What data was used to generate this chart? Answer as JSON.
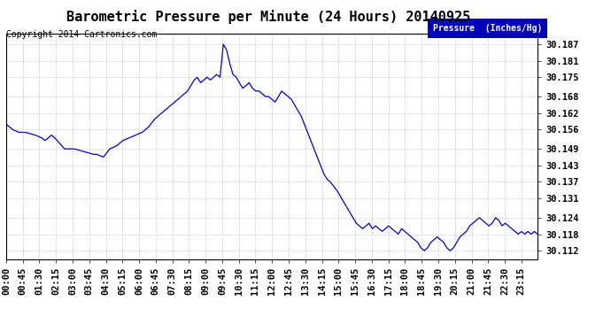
{
  "title": "Barometric Pressure per Minute (24 Hours) 20140925",
  "copyright": "Copyright 2014 Cartronics.com",
  "legend_label": "Pressure  (Inches/Hg)",
  "legend_bg": "#0000bb",
  "legend_text_color": "#ffffff",
  "line_color": "#0000cc",
  "background_color": "#ffffff",
  "grid_color": "#cccccc",
  "yticks": [
    30.112,
    30.118,
    30.124,
    30.131,
    30.137,
    30.143,
    30.149,
    30.156,
    30.162,
    30.168,
    30.175,
    30.181,
    30.187
  ],
  "ylim": [
    30.109,
    30.191
  ],
  "xtick_labels": [
    "00:00",
    "00:45",
    "01:30",
    "02:15",
    "03:00",
    "03:45",
    "04:30",
    "05:15",
    "06:00",
    "06:45",
    "07:30",
    "08:15",
    "09:00",
    "09:45",
    "10:30",
    "11:15",
    "12:00",
    "12:45",
    "13:30",
    "14:15",
    "15:00",
    "15:45",
    "16:30",
    "17:15",
    "18:00",
    "18:45",
    "19:30",
    "20:15",
    "21:00",
    "21:45",
    "22:30",
    "23:15"
  ],
  "title_fontsize": 11,
  "tick_fontsize": 7.5,
  "copyright_fontsize": 7,
  "keypoints": [
    [
      0,
      30.158
    ],
    [
      30,
      30.156
    ],
    [
      60,
      30.155
    ],
    [
      90,
      30.155
    ],
    [
      135,
      30.154
    ],
    [
      165,
      30.153
    ],
    [
      180,
      30.152
    ],
    [
      210,
      30.154
    ],
    [
      225,
      30.153
    ],
    [
      270,
      30.149
    ],
    [
      315,
      30.149
    ],
    [
      360,
      30.148
    ],
    [
      405,
      30.147
    ],
    [
      420,
      30.147
    ],
    [
      450,
      30.146
    ],
    [
      480,
      30.149
    ],
    [
      510,
      30.15
    ],
    [
      525,
      30.151
    ],
    [
      540,
      30.152
    ],
    [
      570,
      30.153
    ],
    [
      600,
      30.154
    ],
    [
      630,
      30.155
    ],
    [
      660,
      30.157
    ],
    [
      690,
      30.16
    ],
    [
      720,
      30.162
    ],
    [
      750,
      30.164
    ],
    [
      780,
      30.166
    ],
    [
      810,
      30.168
    ],
    [
      840,
      30.17
    ],
    [
      855,
      30.172
    ],
    [
      870,
      30.174
    ],
    [
      885,
      30.175
    ],
    [
      900,
      30.173
    ],
    [
      915,
      30.174
    ],
    [
      930,
      30.175
    ],
    [
      945,
      30.174
    ],
    [
      960,
      30.175
    ],
    [
      975,
      30.176
    ],
    [
      990,
      30.175
    ],
    [
      1005,
      30.187
    ],
    [
      1020,
      30.185
    ],
    [
      1035,
      30.18
    ],
    [
      1050,
      30.176
    ],
    [
      1065,
      30.175
    ],
    [
      1080,
      30.173
    ],
    [
      1095,
      30.171
    ],
    [
      1110,
      30.172
    ],
    [
      1125,
      30.173
    ],
    [
      1140,
      30.171
    ],
    [
      1155,
      30.17
    ],
    [
      1170,
      30.17
    ],
    [
      1185,
      30.169
    ],
    [
      1200,
      30.168
    ],
    [
      1215,
      30.168
    ],
    [
      1230,
      30.167
    ],
    [
      1245,
      30.166
    ],
    [
      1260,
      30.168
    ],
    [
      1275,
      30.17
    ],
    [
      1290,
      30.169
    ],
    [
      1305,
      30.168
    ],
    [
      1320,
      30.167
    ],
    [
      1335,
      30.165
    ],
    [
      1350,
      30.163
    ],
    [
      1365,
      30.161
    ],
    [
      1380,
      30.158
    ],
    [
      1395,
      30.155
    ],
    [
      1410,
      30.152
    ],
    [
      1425,
      30.149
    ],
    [
      1440,
      30.146
    ],
    [
      1455,
      30.143
    ],
    [
      1470,
      30.14
    ],
    [
      1485,
      30.138
    ],
    [
      1500,
      30.137
    ],
    [
      1530,
      30.134
    ],
    [
      1560,
      30.13
    ],
    [
      1590,
      30.126
    ],
    [
      1620,
      30.122
    ],
    [
      1650,
      30.12
    ],
    [
      1665,
      30.121
    ],
    [
      1680,
      30.122
    ],
    [
      1695,
      30.12
    ],
    [
      1710,
      30.121
    ],
    [
      1725,
      30.12
    ],
    [
      1740,
      30.119
    ],
    [
      1755,
      30.12
    ],
    [
      1770,
      30.121
    ],
    [
      1785,
      30.12
    ],
    [
      1800,
      30.119
    ],
    [
      1815,
      30.118
    ],
    [
      1830,
      30.12
    ],
    [
      1845,
      30.119
    ],
    [
      1860,
      30.118
    ],
    [
      1875,
      30.117
    ],
    [
      1890,
      30.116
    ],
    [
      1905,
      30.115
    ],
    [
      1920,
      30.113
    ],
    [
      1935,
      30.112
    ],
    [
      1950,
      30.113
    ],
    [
      1965,
      30.115
    ],
    [
      1980,
      30.116
    ],
    [
      1995,
      30.117
    ],
    [
      2010,
      30.116
    ],
    [
      2025,
      30.115
    ],
    [
      2040,
      30.113
    ],
    [
      2055,
      30.112
    ],
    [
      2070,
      30.113
    ],
    [
      2085,
      30.115
    ],
    [
      2100,
      30.117
    ],
    [
      2115,
      30.118
    ],
    [
      2130,
      30.119
    ],
    [
      2145,
      30.121
    ],
    [
      2160,
      30.122
    ],
    [
      2175,
      30.123
    ],
    [
      2190,
      30.124
    ],
    [
      2205,
      30.123
    ],
    [
      2220,
      30.122
    ],
    [
      2235,
      30.121
    ],
    [
      2250,
      30.122
    ],
    [
      2265,
      30.124
    ],
    [
      2280,
      30.123
    ],
    [
      2295,
      30.121
    ],
    [
      2310,
      30.122
    ],
    [
      2325,
      30.121
    ],
    [
      2340,
      30.12
    ],
    [
      2355,
      30.119
    ],
    [
      2370,
      30.118
    ],
    [
      2385,
      30.119
    ],
    [
      2400,
      30.118
    ],
    [
      2415,
      30.119
    ],
    [
      2430,
      30.118
    ],
    [
      2445,
      30.119
    ],
    [
      2460,
      30.118
    ]
  ]
}
